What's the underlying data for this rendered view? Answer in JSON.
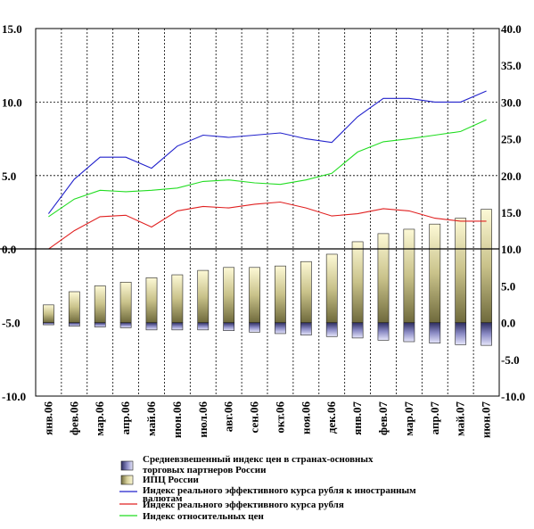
{
  "chart_data": {
    "type": "bar",
    "categories": [
      "янв.06",
      "фев.06",
      "мар.06",
      "апр.06",
      "май.06",
      "июн.06",
      "июл.06",
      "авг.06",
      "сен.06",
      "окт.06",
      "ноя.06",
      "дек.06",
      "янв.07",
      "фев.07",
      "мар.07",
      "апр.07",
      "май.07",
      "июн.07"
    ],
    "left_axis": {
      "ylim": [
        -10,
        15
      ],
      "ticks": [
        "15.0",
        "10.0",
        "5.0",
        "0.0",
        "-5.0",
        "-10.0"
      ],
      "tick_values": [
        15,
        10,
        5,
        0,
        -5,
        -10
      ]
    },
    "right_axis": {
      "ylim": [
        -10,
        40
      ],
      "ticks": [
        "40.0",
        "35.0",
        "30.0",
        "25.0",
        "20.0",
        "15.0",
        "10.0",
        "5.0",
        "0.0",
        "-5.0",
        "-10.0"
      ],
      "tick_values": [
        40,
        35,
        30,
        25,
        20,
        15,
        10,
        5,
        0,
        -5,
        -10
      ]
    },
    "grid": "vertical dashed, horizontal dashed at 5.0 and 10.0",
    "series": [
      {
        "name": "Средневзвешенный индекс цен в странах-основных торговых партнеров России",
        "kind": "bar",
        "axis": "right",
        "color": "#7f7fb8",
        "values": [
          -0.3,
          -0.5,
          -0.6,
          -0.7,
          -1.0,
          -1.0,
          -1.0,
          -1.1,
          -1.3,
          -1.5,
          -1.7,
          -1.9,
          -2.1,
          -2.4,
          -2.6,
          -2.8,
          -3.0,
          -3.1
        ]
      },
      {
        "name": "ИПЦ России",
        "kind": "bar",
        "axis": "right",
        "color": "#b5ae74",
        "values": [
          2.4,
          4.2,
          5.0,
          5.5,
          6.1,
          6.5,
          7.1,
          7.5,
          7.5,
          7.7,
          8.3,
          9.3,
          11.0,
          12.1,
          12.7,
          13.4,
          14.2,
          15.4
        ]
      },
      {
        "name": "Индекс реального эффективного курса рубля к иностранным валютам",
        "kind": "line",
        "axis": "right",
        "color": "#2222cc",
        "values": [
          14.8,
          19.5,
          22.5,
          22.5,
          21.0,
          24.0,
          25.5,
          25.2,
          25.5,
          25.8,
          25.0,
          24.5,
          28.0,
          30.5,
          30.5,
          30.0,
          30.0,
          31.5
        ]
      },
      {
        "name": "Индекс реального эффективного курса рубля",
        "kind": "line",
        "axis": "right",
        "color": "#e02020",
        "values": [
          10.0,
          12.5,
          14.4,
          14.6,
          13.0,
          15.2,
          15.8,
          15.6,
          16.1,
          16.4,
          15.6,
          14.5,
          14.8,
          15.5,
          15.2,
          14.2,
          13.8,
          13.8
        ]
      },
      {
        "name": "Индекс относительных цен",
        "kind": "line",
        "axis": "right",
        "color": "#22dd22",
        "values": [
          14.4,
          16.8,
          18.0,
          17.8,
          18.0,
          18.3,
          19.2,
          19.4,
          19.0,
          18.8,
          19.4,
          20.3,
          23.2,
          24.6,
          25.0,
          25.5,
          26.0,
          27.6
        ]
      }
    ]
  }
}
